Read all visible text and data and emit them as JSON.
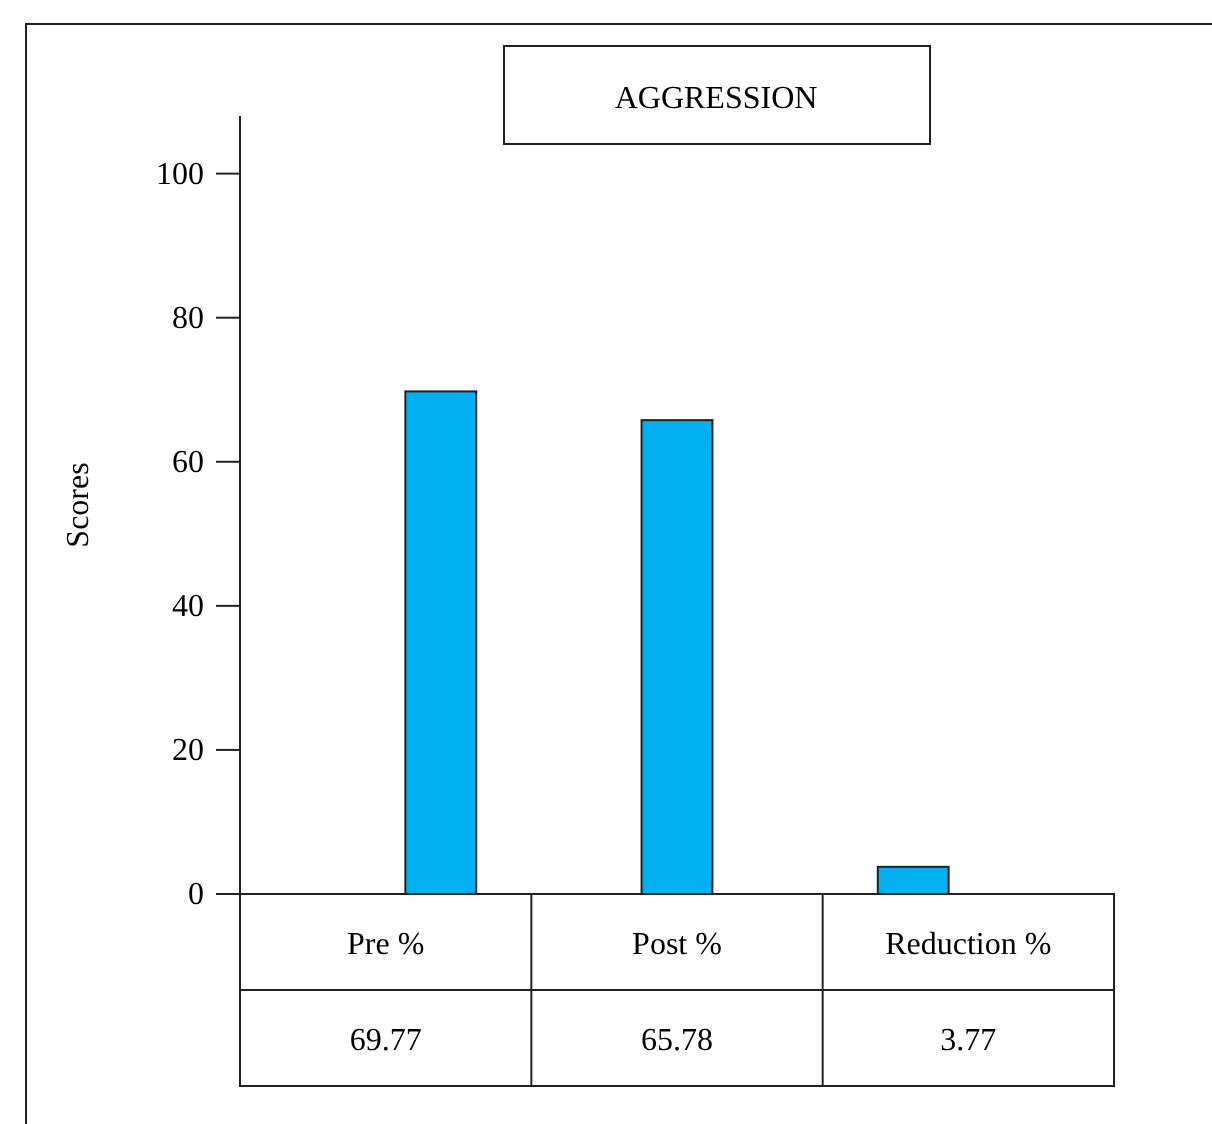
{
  "chart_data": {
    "type": "bar",
    "title": "AGGRESSION",
    "ylabel": "Scores",
    "categories": [
      "Pre %",
      "Post %",
      "Reduction %"
    ],
    "values": [
      69.77,
      65.78,
      3.77
    ],
    "color": "#00b0f0",
    "ylim": [
      0,
      108
    ],
    "yticks": [
      0,
      20,
      40,
      60,
      80,
      100
    ],
    "data_labels": true
  }
}
